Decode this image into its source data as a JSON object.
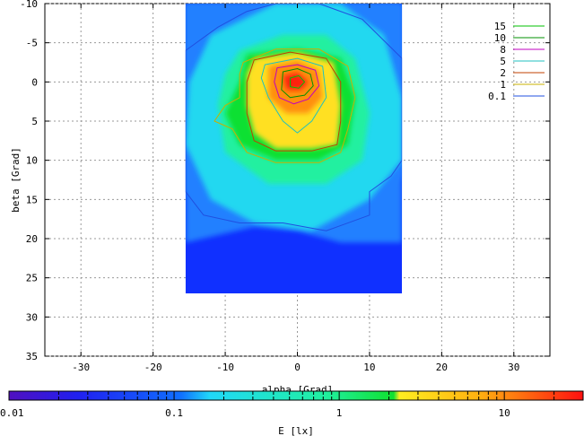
{
  "chart_data": {
    "type": "heatmap",
    "title": "",
    "xlabel": "alpha [Grad]",
    "ylabel": "beta [Grad]",
    "xlim": [
      -35,
      35
    ],
    "ylim": [
      -10,
      35
    ],
    "y_axis_inverted": true,
    "x_ticks": [
      -30,
      -20,
      -10,
      0,
      10,
      20,
      30
    ],
    "y_ticks": [
      -10,
      -5,
      0,
      5,
      10,
      15,
      20,
      25,
      30,
      35
    ],
    "x_tick_labels": [
      "-30",
      "-20",
      "-10",
      "0",
      "10",
      "20",
      "30"
    ],
    "y_tick_labels": [
      "-10",
      "-5",
      "0",
      "5",
      "10",
      "15",
      "20",
      "25",
      "30",
      "35"
    ],
    "grid": true,
    "data_extent": {
      "alpha": [
        -15.5,
        14.5
      ],
      "beta": [
        -10,
        27
      ]
    },
    "peak": {
      "alpha": -0.5,
      "beta": 0,
      "E": 15
    },
    "contour_levels": [
      {
        "label": "15",
        "value": 15,
        "color": "#00c000"
      },
      {
        "label": "10",
        "value": 10,
        "color": "#009000"
      },
      {
        "label": "8",
        "value": 8,
        "color": "#c000c0"
      },
      {
        "label": "5",
        "value": 5,
        "color": "#20c0c0"
      },
      {
        "label": "2",
        "value": 2,
        "color": "#c04000"
      },
      {
        "label": "1",
        "value": 1,
        "color": "#c8b000"
      },
      {
        "label": "0.1",
        "value": 0.1,
        "color": "#2050e0"
      }
    ],
    "legend_position": "top-right",
    "colorbar": {
      "label": "E [lx]",
      "scale": "log",
      "range": [
        0.01,
        30
      ],
      "ticks": [
        0.01,
        0.1,
        1,
        10
      ],
      "tick_labels": [
        "0.01",
        "0.1",
        "1",
        "10"
      ]
    }
  },
  "colors": {
    "deep_blue": "#1030ff",
    "blue": "#2080ff",
    "cyan": "#20d8f0",
    "green": "#10e030",
    "yellow": "#ffe020",
    "orange": "#ff9010",
    "red": "#ff2010"
  }
}
